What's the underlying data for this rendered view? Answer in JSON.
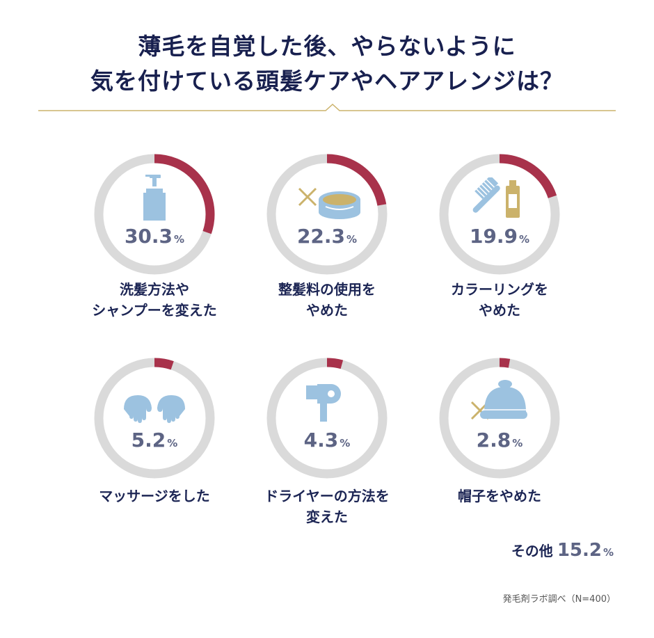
{
  "title_lines": [
    "薄毛を自覚した後、やらないように",
    "気を付けている頭髪ケアやヘアアレンジは？"
  ],
  "colors": {
    "accent": "#a8324b",
    "ring_bg": "#dadada",
    "icon_blue": "#9cc2e0",
    "gold": "#cbb26b",
    "title": "#18204f",
    "value": "#5d6484"
  },
  "chart_data": {
    "type": "donut",
    "unit": "%",
    "items": [
      {
        "label_lines": [
          "洗髪方法や",
          "シャンプーを変えた"
        ],
        "value": 30.3,
        "display": "30.3",
        "icon": "pump-bottle-icon"
      },
      {
        "label_lines": [
          "整髪料の使用を",
          "やめた"
        ],
        "value": 22.3,
        "display": "22.3",
        "icon": "hair-wax-jar-icon"
      },
      {
        "label_lines": [
          "カラーリングを",
          "やめた"
        ],
        "value": 19.9,
        "display": "19.9",
        "icon": "comb-and-dye-tube-icon"
      },
      {
        "label_lines": [
          "マッサージをした"
        ],
        "value": 5.2,
        "display": "5.2",
        "icon": "massage-hands-icon"
      },
      {
        "label_lines": [
          "ドライヤーの方法を",
          "変えた"
        ],
        "value": 4.3,
        "display": "4.3",
        "icon": "hair-dryer-icon"
      },
      {
        "label_lines": [
          "帽子をやめた"
        ],
        "value": 2.8,
        "display": "2.8",
        "icon": "knit-hat-icon"
      }
    ],
    "other": {
      "label": "その他",
      "value": 15.2,
      "display": "15.2"
    }
  },
  "source": "発毛剤ラボ調べ（N=400）"
}
